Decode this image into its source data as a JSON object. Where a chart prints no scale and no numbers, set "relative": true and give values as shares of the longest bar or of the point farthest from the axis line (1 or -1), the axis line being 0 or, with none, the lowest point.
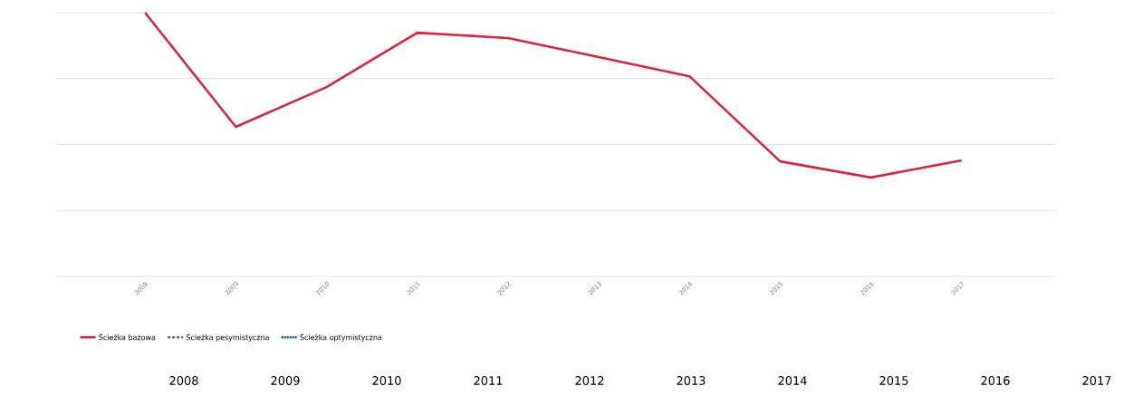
{
  "chart_data": {
    "type": "line",
    "relative": true,
    "grid": "y",
    "legend": "bottom left",
    "categories": [
      "2008",
      "2009",
      "2010",
      "2011",
      "2012",
      "2013",
      "2014",
      "2015",
      "2016",
      "2017"
    ],
    "series": [
      {
        "name": "Ścieżka bazowa",
        "color": "#dc243c",
        "line_style": "solid",
        "values": [
          1,
          0.567,
          0.718,
          0.924,
          0.904,
          0.832,
          0.759,
          0.436,
          0.375,
          0.44
        ]
      },
      {
        "name": "Ścieżka pesymistyczna",
        "color": "#666666",
        "line_style": "dashed",
        "values": [
          null,
          null,
          null,
          null,
          null,
          null,
          null,
          null,
          null,
          null
        ]
      },
      {
        "name": "Ścieżka optymistyczna",
        "color": "#0050a0",
        "line_style": "dotted",
        "values": [
          null,
          null,
          null,
          null,
          null,
          null,
          null,
          null,
          null,
          null
        ]
      }
    ],
    "annotations": [
      "2008",
      "2009",
      "2010",
      "2011",
      "2012",
      "2013",
      "2014",
      "2015",
      "2016",
      "2017"
    ]
  }
}
